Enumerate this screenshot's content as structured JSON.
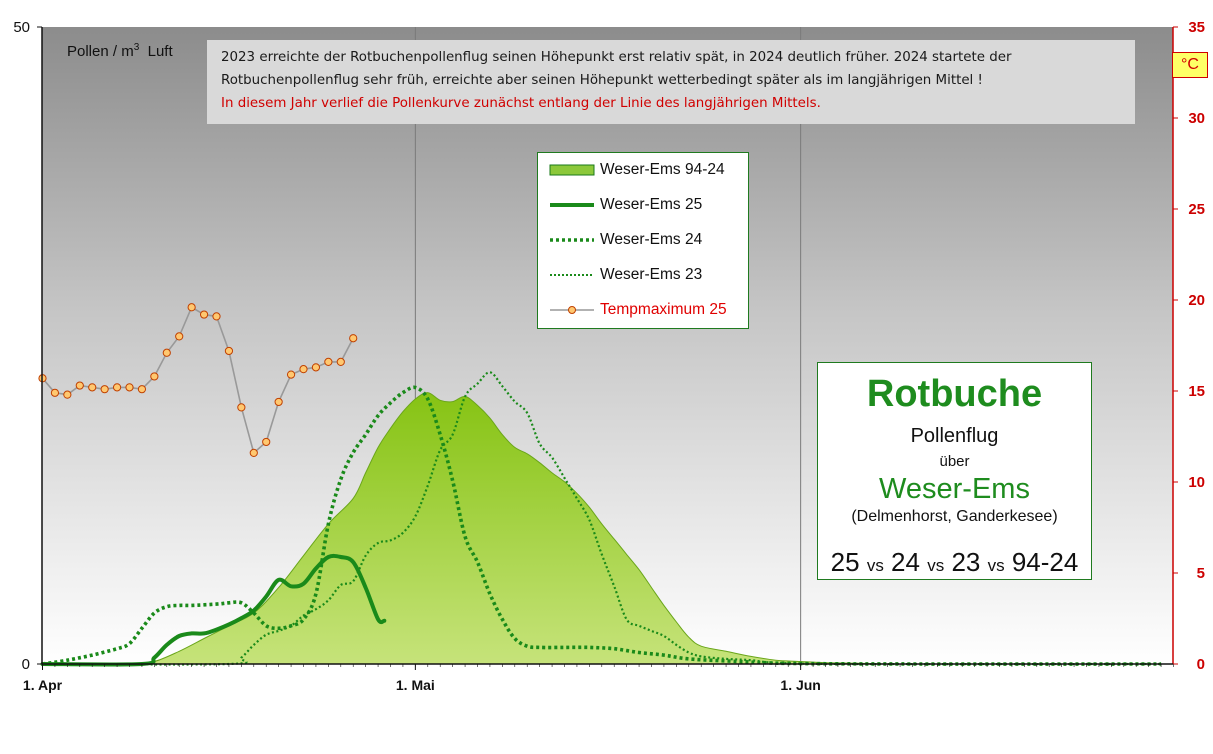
{
  "chart_data": {
    "type": "line",
    "x_axis": {
      "tick_labels": [
        "1. Apr",
        "1. Mai",
        "1. Jun"
      ],
      "range": [
        "1. Apr",
        "30. Jun"
      ]
    },
    "y_axis_left": {
      "label": "Pollen / m",
      "label_sup": "3",
      "label_suffix": "  Luft",
      "range": [
        0,
        50
      ],
      "tick_labels": [
        "0",
        "50"
      ]
    },
    "y_axis_right": {
      "unit": "°C",
      "range": [
        0,
        35
      ],
      "tick_labels": [
        "0",
        "5",
        "10",
        "15",
        "20",
        "25",
        "30",
        "35"
      ],
      "color": "#cc0000"
    },
    "legend_placement": "center-top",
    "series": [
      {
        "name": "Weser-Ems 94-24",
        "kind": "area",
        "color": "#7fc31c",
        "points": [
          [
            0,
            0
          ],
          [
            7,
            0
          ],
          [
            9,
            0.2
          ],
          [
            11,
            1
          ],
          [
            13,
            2
          ],
          [
            15,
            3
          ],
          [
            17,
            4
          ],
          [
            19,
            6
          ],
          [
            21,
            8.5
          ],
          [
            23,
            11
          ],
          [
            25,
            13
          ],
          [
            26,
            15
          ],
          [
            27,
            17
          ],
          [
            28,
            18.5
          ],
          [
            29,
            19.8
          ],
          [
            30,
            20.8
          ],
          [
            31,
            21.3
          ],
          [
            32,
            20.7
          ],
          [
            33,
            20.6
          ],
          [
            34,
            21
          ],
          [
            35,
            20.3
          ],
          [
            36,
            19.3
          ],
          [
            37,
            18
          ],
          [
            38,
            17
          ],
          [
            39,
            16.5
          ],
          [
            40,
            15.8
          ],
          [
            41,
            15
          ],
          [
            42,
            14.3
          ],
          [
            43,
            13.4
          ],
          [
            44,
            12.3
          ],
          [
            45,
            11
          ],
          [
            46,
            9.8
          ],
          [
            47,
            8.6
          ],
          [
            48,
            7.4
          ],
          [
            49,
            6
          ],
          [
            50,
            4.6
          ],
          [
            51,
            3.3
          ],
          [
            52,
            2.1
          ],
          [
            53,
            1.4
          ],
          [
            55,
            1
          ],
          [
            57,
            0.6
          ],
          [
            59,
            0.3
          ],
          [
            61,
            0.2
          ],
          [
            63,
            0.1
          ],
          [
            66,
            0.05
          ],
          [
            70,
            0
          ],
          [
            90,
            0
          ]
        ]
      },
      {
        "name": "Weser-Ems 25",
        "kind": "solid",
        "color": "#1a8a1a",
        "points": [
          [
            0,
            0
          ],
          [
            8,
            0
          ],
          [
            9,
            0.5
          ],
          [
            10,
            1.5
          ],
          [
            11,
            2.2
          ],
          [
            12,
            2.4
          ],
          [
            13,
            2.4
          ],
          [
            14,
            2.7
          ],
          [
            15,
            3.1
          ],
          [
            16,
            3.6
          ],
          [
            17,
            4.2
          ],
          [
            18,
            5.3
          ],
          [
            19,
            6.6
          ],
          [
            20,
            6.1
          ],
          [
            21,
            6.3
          ],
          [
            22,
            7.5
          ],
          [
            23,
            8.4
          ],
          [
            24,
            8.4
          ],
          [
            25,
            8
          ],
          [
            26,
            6
          ],
          [
            27,
            3.5
          ],
          [
            27.5,
            3.4
          ]
        ]
      },
      {
        "name": "Weser-Ems 24",
        "kind": "dotted-thick",
        "color": "#1a8a1a",
        "points": [
          [
            0,
            0
          ],
          [
            2,
            0.3
          ],
          [
            4,
            0.7
          ],
          [
            6,
            1.2
          ],
          [
            7,
            1.6
          ],
          [
            8,
            2.8
          ],
          [
            9,
            4
          ],
          [
            10,
            4.5
          ],
          [
            11,
            4.6
          ],
          [
            12,
            4.6
          ],
          [
            14,
            4.7
          ],
          [
            15,
            4.8
          ],
          [
            16,
            4.8
          ],
          [
            17,
            4
          ],
          [
            18,
            3
          ],
          [
            19,
            2.8
          ],
          [
            20,
            3
          ],
          [
            21,
            3.5
          ],
          [
            22,
            5.5
          ],
          [
            23,
            11
          ],
          [
            24,
            14.5
          ],
          [
            25,
            16.6
          ],
          [
            26,
            18
          ],
          [
            27,
            19.5
          ],
          [
            28,
            20.5
          ],
          [
            29,
            21.3
          ],
          [
            30,
            21.7
          ],
          [
            31,
            20.8
          ],
          [
            32,
            18
          ],
          [
            33,
            14.4
          ],
          [
            34,
            10
          ],
          [
            35,
            8
          ],
          [
            36,
            5.5
          ],
          [
            37,
            3.5
          ],
          [
            38,
            2
          ],
          [
            39,
            1.4
          ],
          [
            40,
            1.3
          ],
          [
            42,
            1.3
          ],
          [
            44,
            1.3
          ],
          [
            46,
            1.2
          ],
          [
            48,
            0.9
          ],
          [
            50,
            0.7
          ],
          [
            52,
            0.4
          ],
          [
            56,
            0.2
          ],
          [
            60,
            0.05
          ],
          [
            70,
            0
          ],
          [
            90,
            0
          ]
        ]
      },
      {
        "name": "Weser-Ems 23",
        "kind": "dotted-thin",
        "color": "#1a8a1a",
        "points": [
          [
            0,
            0
          ],
          [
            15,
            0
          ],
          [
            16,
            0.5
          ],
          [
            17,
            1.5
          ],
          [
            18,
            2.3
          ],
          [
            19,
            2.6
          ],
          [
            20,
            3
          ],
          [
            21,
            3.8
          ],
          [
            22,
            4.3
          ],
          [
            23,
            5
          ],
          [
            24,
            6.2
          ],
          [
            25,
            6.5
          ],
          [
            26,
            8.5
          ],
          [
            27,
            9.5
          ],
          [
            28,
            9.7
          ],
          [
            29,
            10.3
          ],
          [
            30,
            11.6
          ],
          [
            31,
            14
          ],
          [
            32,
            16.8
          ],
          [
            33,
            18
          ],
          [
            34,
            21
          ],
          [
            35,
            22
          ],
          [
            36,
            22.9
          ],
          [
            37,
            21.8
          ],
          [
            38,
            20.6
          ],
          [
            39,
            19.7
          ],
          [
            40,
            17.3
          ],
          [
            41,
            16.2
          ],
          [
            42,
            14.6
          ],
          [
            43,
            13
          ],
          [
            44,
            11.3
          ],
          [
            45,
            8.6
          ],
          [
            46,
            6.1
          ],
          [
            47,
            3.5
          ],
          [
            48,
            3
          ],
          [
            49,
            2.6
          ],
          [
            50,
            2.2
          ],
          [
            51,
            1.5
          ],
          [
            52,
            0.9
          ],
          [
            53,
            0.6
          ],
          [
            55,
            0.4
          ],
          [
            57,
            0.3
          ],
          [
            59,
            0.1
          ],
          [
            65,
            0
          ],
          [
            90,
            0
          ]
        ]
      },
      {
        "name": "Tempmaximum 25",
        "kind": "temperature",
        "axis": "right",
        "color": "#999999",
        "marker_fill": "#ffc870",
        "marker_edge": "#c04000",
        "points": [
          [
            0,
            15.7
          ],
          [
            1,
            14.9
          ],
          [
            2,
            14.8
          ],
          [
            3,
            15.3
          ],
          [
            4,
            15.2
          ],
          [
            5,
            15.1
          ],
          [
            6,
            15.2
          ],
          [
            7,
            15.2
          ],
          [
            8,
            15.1
          ],
          [
            9,
            15.8
          ],
          [
            10,
            17.1
          ],
          [
            11,
            18
          ],
          [
            12,
            19.6
          ],
          [
            13,
            19.2
          ],
          [
            14,
            19.1
          ],
          [
            15,
            17.2
          ],
          [
            16,
            14.1
          ],
          [
            17,
            11.6
          ],
          [
            18,
            12.2
          ],
          [
            19,
            14.4
          ],
          [
            20,
            15.9
          ],
          [
            21,
            16.2
          ],
          [
            22,
            16.3
          ],
          [
            23,
            16.6
          ],
          [
            24,
            16.6
          ],
          [
            25,
            17.9
          ]
        ]
      }
    ]
  },
  "note": {
    "line1": "2023 erreichte der Rotbuchenpollenflug  seinen Höhepunkt  erst relativ spät, in 2024 deutlich früher. 2024 startete der",
    "line2": "Rotbuchenpollenflug  sehr früh, erreichte aber seinen Höhepunkt  wetterbedingt  später als im langjährigen  Mittel !",
    "line3": "In diesem Jahr verlief die Pollenkurve  zunächst entlang der Linie des langjährigen  Mittels."
  },
  "info": {
    "title": "Rotbuche",
    "line1": "Pollenflug",
    "line2": "über",
    "region": "Weser-Ems",
    "line3": "(Delmenhorst,  Ganderkesee)",
    "cmp_a": "25",
    "cmp_b": "24",
    "cmp_c": "23",
    "cmp_d": "94-24",
    "vs": "vs"
  }
}
